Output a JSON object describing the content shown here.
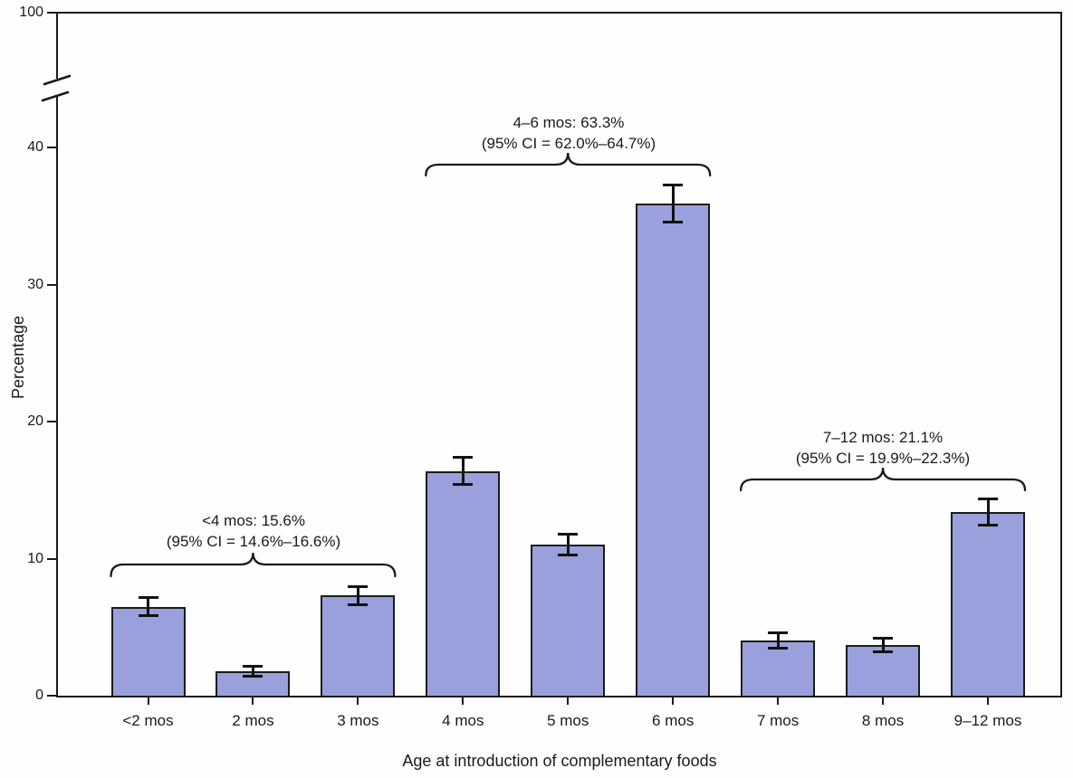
{
  "chart_data": {
    "type": "bar",
    "title": "",
    "xlabel": "Age at introduction of complementary foods",
    "ylabel": "Percentage",
    "categories": [
      "<2 mos",
      "2 mos",
      "3 mos",
      "4 mos",
      "5 mos",
      "6 mos",
      "7 mos",
      "8 mos",
      "9–12 mos"
    ],
    "values": [
      6.5,
      1.8,
      7.3,
      16.4,
      11.0,
      35.9,
      4.0,
      3.7,
      13.4
    ],
    "ci_halfwidths": [
      0.7,
      0.4,
      0.7,
      1.0,
      0.8,
      1.4,
      0.6,
      0.5,
      1.0
    ],
    "y_tick_labels": [
      "0",
      "10",
      "20",
      "30",
      "40",
      "100"
    ],
    "y_tick_values": [
      0,
      10,
      20,
      30,
      40,
      100
    ],
    "ylim": [
      0,
      100
    ],
    "axis_break_between": [
      40,
      100
    ],
    "grid": false,
    "legend": null,
    "bar_color": "#99A0DB",
    "bar_border_color": "#1B1B1B",
    "error_bar_color": "#111111",
    "annotations": [
      {
        "label_line1": "<4 mos: 15.6%",
        "label_line2": "(95% CI = 14.6%–16.6%)",
        "group_total_pct": 15.6,
        "ci_low_pct": 14.6,
        "ci_high_pct": 16.6,
        "span_categories": [
          "<2 mos",
          "3 mos"
        ]
      },
      {
        "label_line1": "4–6 mos: 63.3%",
        "label_line2": "(95% CI = 62.0%–64.7%)",
        "group_total_pct": 63.3,
        "ci_low_pct": 62.0,
        "ci_high_pct": 64.7,
        "span_categories": [
          "4 mos",
          "6 mos"
        ]
      },
      {
        "label_line1": "7–12 mos: 21.1%",
        "label_line2": "(95% CI = 19.9%–22.3%)",
        "group_total_pct": 21.1,
        "ci_low_pct": 19.9,
        "ci_high_pct": 22.3,
        "span_categories": [
          "7 mos",
          "9–12 mos"
        ]
      }
    ]
  }
}
